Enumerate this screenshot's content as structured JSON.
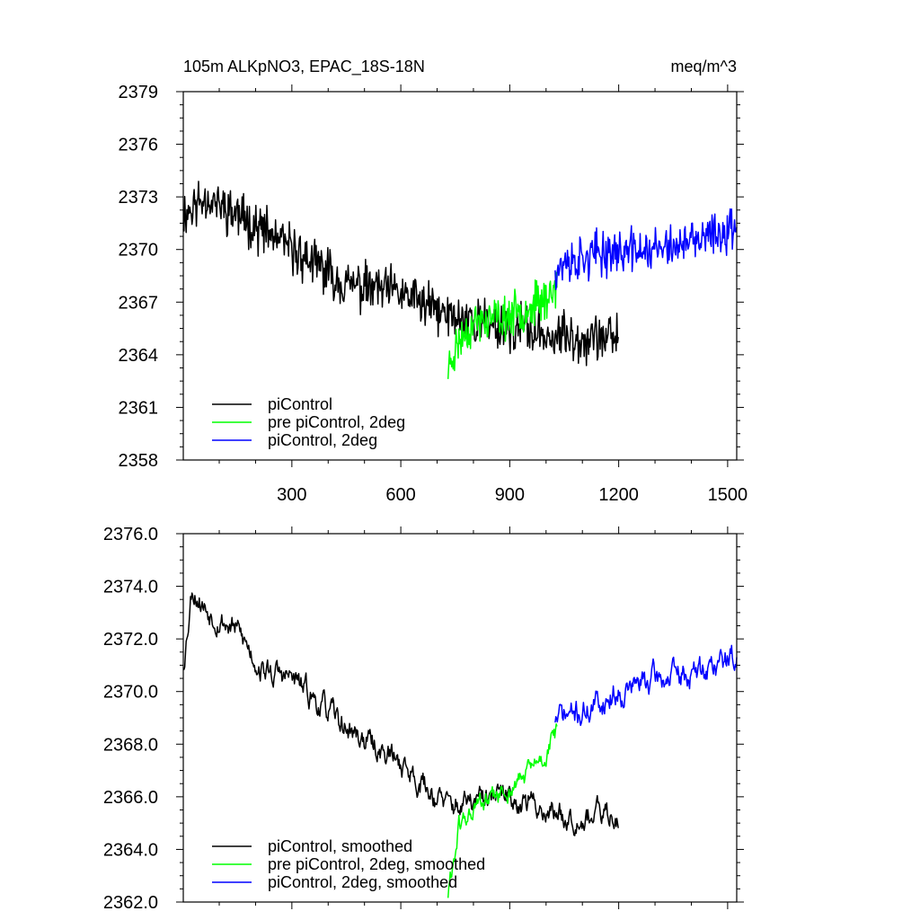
{
  "chart_data": [
    {
      "type": "line",
      "title": "105m ALKpNO3, EPAC_18S-18N",
      "units": "meq/m^3",
      "xlim": [
        1,
        1525
      ],
      "ylim": [
        2358,
        2379
      ],
      "xticks": [
        300,
        600,
        900,
        1200,
        1500
      ],
      "yticks": [
        2358,
        2361,
        2364,
        2367,
        2370,
        2373,
        2376,
        2379
      ],
      "ytick_labels": [
        "2358",
        "2361",
        "2364",
        "2367",
        "2370",
        "2373",
        "2376",
        "2379"
      ],
      "legend_position": "bottom-left",
      "series": [
        {
          "name": "piControl",
          "color": "#000000",
          "x_range": [
            1,
            1200
          ],
          "trend": [
            [
              1,
              2372.0
            ],
            [
              60,
              2373.0
            ],
            [
              150,
              2372.0
            ],
            [
              300,
              2370.0
            ],
            [
              450,
              2368.0
            ],
            [
              600,
              2367.5
            ],
            [
              730,
              2366.2
            ],
            [
              900,
              2365.6
            ],
            [
              1050,
              2365.0
            ],
            [
              1200,
              2365.0
            ]
          ],
          "noise": 1.7,
          "seed": 11
        },
        {
          "name": "pre piControl, 2deg",
          "color": "#00ff00",
          "x_range": [
            730,
            1030
          ],
          "trend": [
            [
              730,
              2363.2
            ],
            [
              760,
              2364.8
            ],
            [
              800,
              2365.8
            ],
            [
              900,
              2366.2
            ],
            [
              1000,
              2367.2
            ],
            [
              1030,
              2368.0
            ]
          ],
          "noise": 1.5,
          "seed": 23
        },
        {
          "name": "piControl, 2deg",
          "color": "#0000ff",
          "x_range": [
            1025,
            1525
          ],
          "trend": [
            [
              1025,
              2369.0
            ],
            [
              1150,
              2369.8
            ],
            [
              1300,
              2370.0
            ],
            [
              1400,
              2370.3
            ],
            [
              1525,
              2371.3
            ]
          ],
          "noise": 1.6,
          "seed": 37
        }
      ]
    },
    {
      "type": "line",
      "xlim": [
        1,
        1525
      ],
      "ylim": [
        2362.0,
        2376.0
      ],
      "xticks": [
        300,
        600,
        900,
        1200,
        1500
      ],
      "yticks": [
        2362,
        2364,
        2366,
        2368,
        2370,
        2372,
        2374,
        2376
      ],
      "ytick_labels": [
        "2362.0",
        "2364.0",
        "2366.0",
        "2368.0",
        "2370.0",
        "2372.0",
        "2374.0",
        "2376.0"
      ],
      "legend_position": "bottom-left",
      "series": [
        {
          "name": "piControl, smoothed",
          "color": "#000000",
          "x_range": [
            1,
            1200
          ],
          "trend": [
            [
              1,
              2371.0
            ],
            [
              25,
              2374.0
            ],
            [
              60,
              2373.2
            ],
            [
              150,
              2372.3
            ],
            [
              220,
              2370.8
            ],
            [
              300,
              2370.5
            ],
            [
              450,
              2368.6
            ],
            [
              600,
              2367.3
            ],
            [
              730,
              2365.6
            ],
            [
              900,
              2366.0
            ],
            [
              1050,
              2365.3
            ],
            [
              1200,
              2365.3
            ]
          ],
          "noise": 0.7,
          "seed": 53
        },
        {
          "name": "pre piControl, 2deg, smoothed",
          "color": "#00ff00",
          "x_range": [
            730,
            1030
          ],
          "trend": [
            [
              730,
              2362.3
            ],
            [
              760,
              2364.8
            ],
            [
              800,
              2365.5
            ],
            [
              900,
              2366.2
            ],
            [
              1000,
              2367.6
            ],
            [
              1030,
              2368.5
            ]
          ],
          "noise": 0.6,
          "seed": 61
        },
        {
          "name": "piControl, 2deg, smoothed",
          "color": "#0000ff",
          "x_range": [
            1025,
            1525
          ],
          "trend": [
            [
              1025,
              2369.0
            ],
            [
              1100,
              2369.2
            ],
            [
              1200,
              2370.0
            ],
            [
              1300,
              2370.5
            ],
            [
              1400,
              2370.6
            ],
            [
              1525,
              2371.4
            ]
          ],
          "noise": 0.75,
          "seed": 71
        }
      ]
    }
  ]
}
